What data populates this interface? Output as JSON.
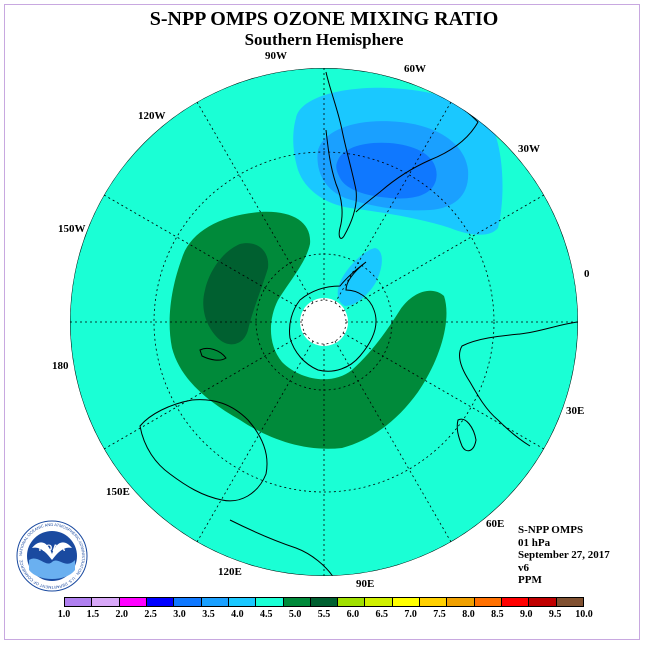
{
  "title": "S-NPP OMPS OZONE MIXING RATIO",
  "subtitle": "Southern Hemisphere",
  "map": {
    "projection": "south polar stereographic",
    "longitude_labels": [
      {
        "text": "90W",
        "lon": -90
      },
      {
        "text": "60W",
        "lon": -60
      },
      {
        "text": "30W",
        "lon": -30
      },
      {
        "text": "0",
        "lon": 0
      },
      {
        "text": "30E",
        "lon": 30
      },
      {
        "text": "60E",
        "lon": 60
      },
      {
        "text": "90E",
        "lon": 90
      },
      {
        "text": "120E",
        "lon": 120
      },
      {
        "text": "150E",
        "lon": 150
      },
      {
        "text": "180",
        "lon": 180
      },
      {
        "text": "150W",
        "lon": -150
      },
      {
        "text": "120W",
        "lon": -120
      }
    ],
    "latitude_circles_deg": [
      -30,
      -60,
      -80
    ],
    "fill_colors": {
      "background_field": "#1affd5",
      "dark_green": "#007a33",
      "darker_green": "#006030",
      "light_blue": "#1ac8ff",
      "mid_blue": "#1aa0ff",
      "deep_blue": "#0f78ff",
      "pole_no_data": "#ffffff"
    }
  },
  "info": {
    "instrument": "S-NPP OMPS",
    "level": "01 hPa",
    "date": "September 27, 2017",
    "version": "v6",
    "units": "PPM"
  },
  "colorbar": {
    "ticks": [
      "1.0",
      "1.5",
      "2.0",
      "2.5",
      "3.0",
      "3.5",
      "4.0",
      "4.5",
      "5.0",
      "5.5",
      "6.0",
      "6.5",
      "7.0",
      "7.5",
      "8.0",
      "8.5",
      "9.0",
      "9.5",
      "10.0"
    ],
    "colors": [
      "#b080f0",
      "#d8a8f8",
      "#ff00ff",
      "#0000ff",
      "#0f78ff",
      "#1aa0ff",
      "#1ac8ff",
      "#1affd5",
      "#008a3a",
      "#006030",
      "#a0e000",
      "#d0f000",
      "#ffff00",
      "#ffd000",
      "#f0a000",
      "#ff7000",
      "#ff0000",
      "#c00000",
      "#805030"
    ]
  },
  "logo": {
    "text": "NOAA",
    "ring_text": "NATIONAL OCEANIC AND ATMOSPHERIC ADMINISTRATION · U.S. DEPARTMENT OF COMMERCE"
  }
}
